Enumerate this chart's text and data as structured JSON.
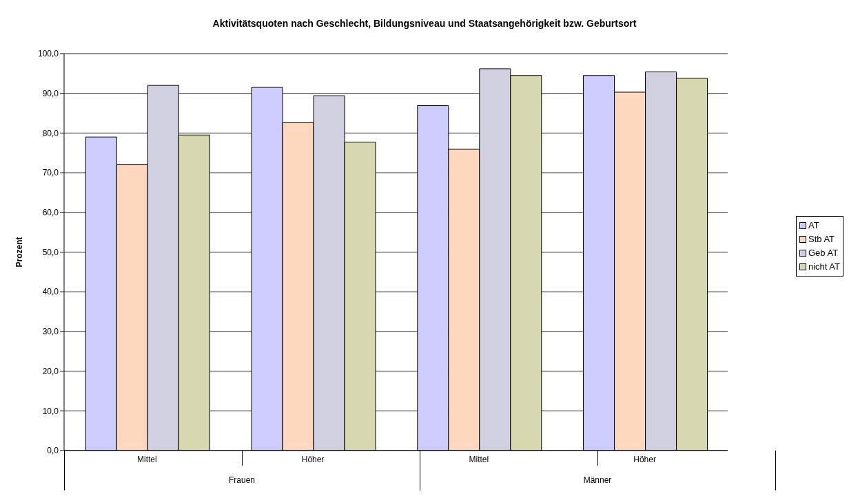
{
  "chart_data": {
    "type": "bar",
    "title": "Aktivitätsquoten nach Geschlecht, Bildungsniveau und Staatsangehörigkeit bzw. Geburtsort",
    "ylabel": "Prozent",
    "categories": [
      "Mittel",
      "Höher",
      "Mittel",
      "Höher"
    ],
    "annotations": [
      "Frauen",
      "Männer"
    ],
    "series": [
      {
        "name": "AT",
        "color": "#ccccff",
        "values": [
          79.0,
          91.5,
          86.9,
          94.5
        ]
      },
      {
        "name": "Stb AT",
        "color": "#ffd8bf",
        "values": [
          72.0,
          82.6,
          75.9,
          90.3
        ]
      },
      {
        "name": "Geb AT",
        "color": "#d0d0e0",
        "values": [
          92.0,
          89.4,
          96.2,
          95.4
        ]
      },
      {
        "name": "nicht AT",
        "color": "#d8d8b0",
        "values": [
          79.5,
          77.7,
          94.5,
          93.8
        ]
      }
    ],
    "ylim": [
      0,
      100
    ],
    "yticks": [
      {
        "value": 0,
        "label": "0,0"
      },
      {
        "value": 10,
        "label": "10,0"
      },
      {
        "value": 20,
        "label": "20,0"
      },
      {
        "value": 30,
        "label": "30,0"
      },
      {
        "value": 40,
        "label": "40,0"
      },
      {
        "value": 50,
        "label": "50,0"
      },
      {
        "value": 60,
        "label": "60,0"
      },
      {
        "value": 70,
        "label": "70,0"
      },
      {
        "value": 80,
        "label": "80,0"
      },
      {
        "value": 90,
        "label": "90,0"
      },
      {
        "value": 100,
        "label": "100,0"
      }
    ],
    "grid": "y",
    "legend": "right"
  }
}
